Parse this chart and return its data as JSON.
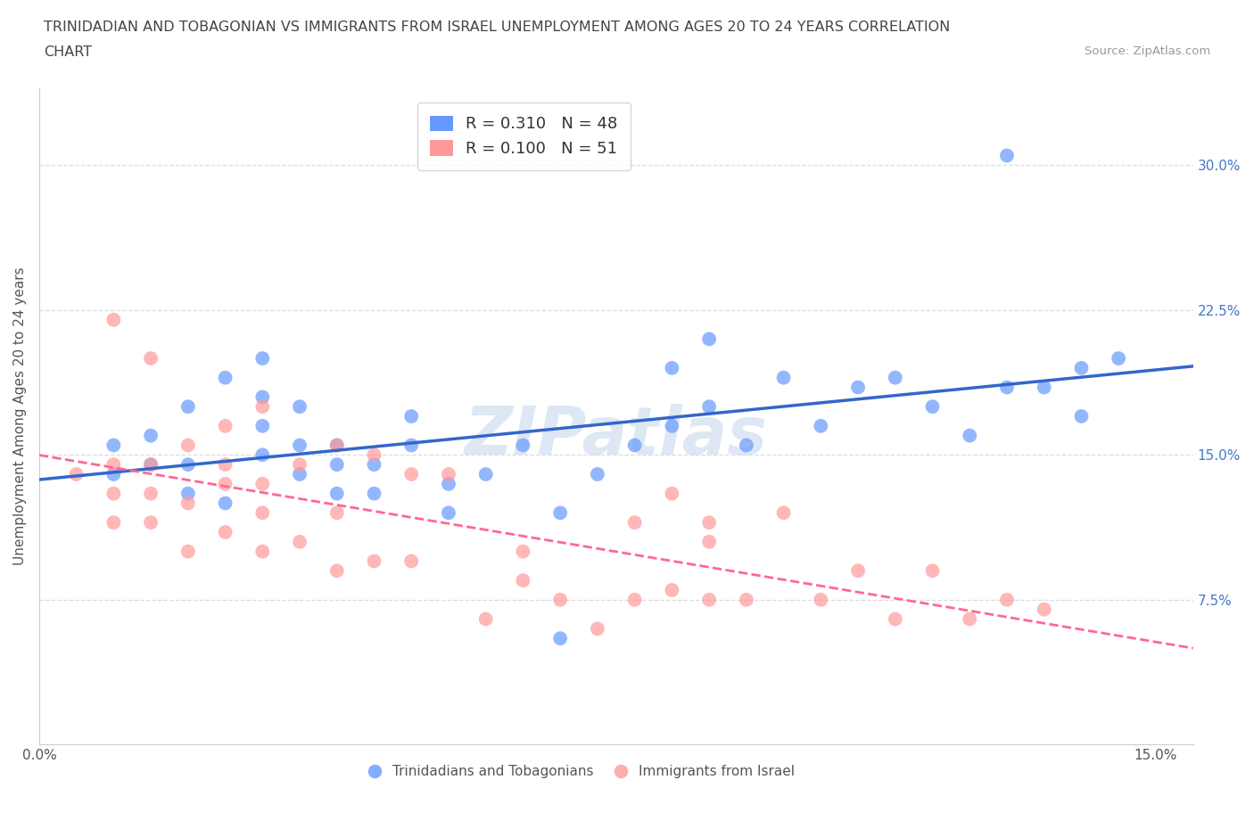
{
  "title_line1": "TRINIDADIAN AND TOBAGONIAN VS IMMIGRANTS FROM ISRAEL UNEMPLOYMENT AMONG AGES 20 TO 24 YEARS CORRELATION",
  "title_line2": "CHART",
  "source": "Source: ZipAtlas.com",
  "ylabel": "Unemployment Among Ages 20 to 24 years",
  "x_tick_positions": [
    0.0,
    0.025,
    0.05,
    0.075,
    0.1,
    0.125,
    0.15
  ],
  "x_tick_labels": [
    "0.0%",
    "",
    "",
    "",
    "",
    "",
    "15.0%"
  ],
  "y_ticks_right": [
    0.075,
    0.15,
    0.225,
    0.3
  ],
  "y_tick_labels_right": [
    "7.5%",
    "15.0%",
    "22.5%",
    "30.0%"
  ],
  "blue_color": "#6699FF",
  "pink_color": "#FF9999",
  "blue_line_color": "#3366CC",
  "pink_line_color": "#FF6699",
  "watermark": "ZIPatlas",
  "legend_R1": "R = 0.310",
  "legend_N1": "N = 48",
  "legend_R2": "R = 0.100",
  "legend_N2": "N = 51",
  "blue_scatter_x": [
    0.01,
    0.01,
    0.015,
    0.015,
    0.02,
    0.02,
    0.02,
    0.025,
    0.025,
    0.03,
    0.03,
    0.03,
    0.03,
    0.035,
    0.035,
    0.035,
    0.04,
    0.04,
    0.04,
    0.045,
    0.045,
    0.05,
    0.05,
    0.055,
    0.055,
    0.06,
    0.065,
    0.07,
    0.07,
    0.075,
    0.08,
    0.085,
    0.085,
    0.09,
    0.09,
    0.095,
    0.1,
    0.105,
    0.11,
    0.115,
    0.12,
    0.125,
    0.13,
    0.135,
    0.14,
    0.14,
    0.145,
    0.13
  ],
  "blue_scatter_y": [
    0.14,
    0.155,
    0.145,
    0.16,
    0.13,
    0.145,
    0.175,
    0.125,
    0.19,
    0.15,
    0.165,
    0.18,
    0.2,
    0.14,
    0.155,
    0.175,
    0.13,
    0.145,
    0.155,
    0.13,
    0.145,
    0.155,
    0.17,
    0.12,
    0.135,
    0.14,
    0.155,
    0.12,
    0.055,
    0.14,
    0.155,
    0.165,
    0.195,
    0.175,
    0.21,
    0.155,
    0.19,
    0.165,
    0.185,
    0.19,
    0.175,
    0.16,
    0.185,
    0.185,
    0.17,
    0.195,
    0.2,
    0.305
  ],
  "pink_scatter_x": [
    0.005,
    0.01,
    0.01,
    0.01,
    0.01,
    0.015,
    0.015,
    0.015,
    0.015,
    0.02,
    0.02,
    0.02,
    0.025,
    0.025,
    0.025,
    0.025,
    0.03,
    0.03,
    0.03,
    0.03,
    0.035,
    0.035,
    0.04,
    0.04,
    0.04,
    0.045,
    0.045,
    0.05,
    0.05,
    0.055,
    0.06,
    0.065,
    0.065,
    0.07,
    0.075,
    0.08,
    0.08,
    0.085,
    0.085,
    0.09,
    0.09,
    0.095,
    0.1,
    0.105,
    0.11,
    0.115,
    0.12,
    0.125,
    0.13,
    0.135,
    0.09
  ],
  "pink_scatter_y": [
    0.14,
    0.115,
    0.13,
    0.145,
    0.22,
    0.115,
    0.13,
    0.145,
    0.2,
    0.1,
    0.125,
    0.155,
    0.11,
    0.135,
    0.145,
    0.165,
    0.1,
    0.12,
    0.135,
    0.175,
    0.105,
    0.145,
    0.09,
    0.12,
    0.155,
    0.095,
    0.15,
    0.095,
    0.14,
    0.14,
    0.065,
    0.085,
    0.1,
    0.075,
    0.06,
    0.075,
    0.115,
    0.08,
    0.13,
    0.075,
    0.115,
    0.075,
    0.12,
    0.075,
    0.09,
    0.065,
    0.09,
    0.065,
    0.075,
    0.07,
    0.105
  ],
  "xlim": [
    0.0,
    0.155
  ],
  "ylim": [
    0.0,
    0.34
  ],
  "background_color": "#FFFFFF",
  "grid_color": "#DDDDDD"
}
